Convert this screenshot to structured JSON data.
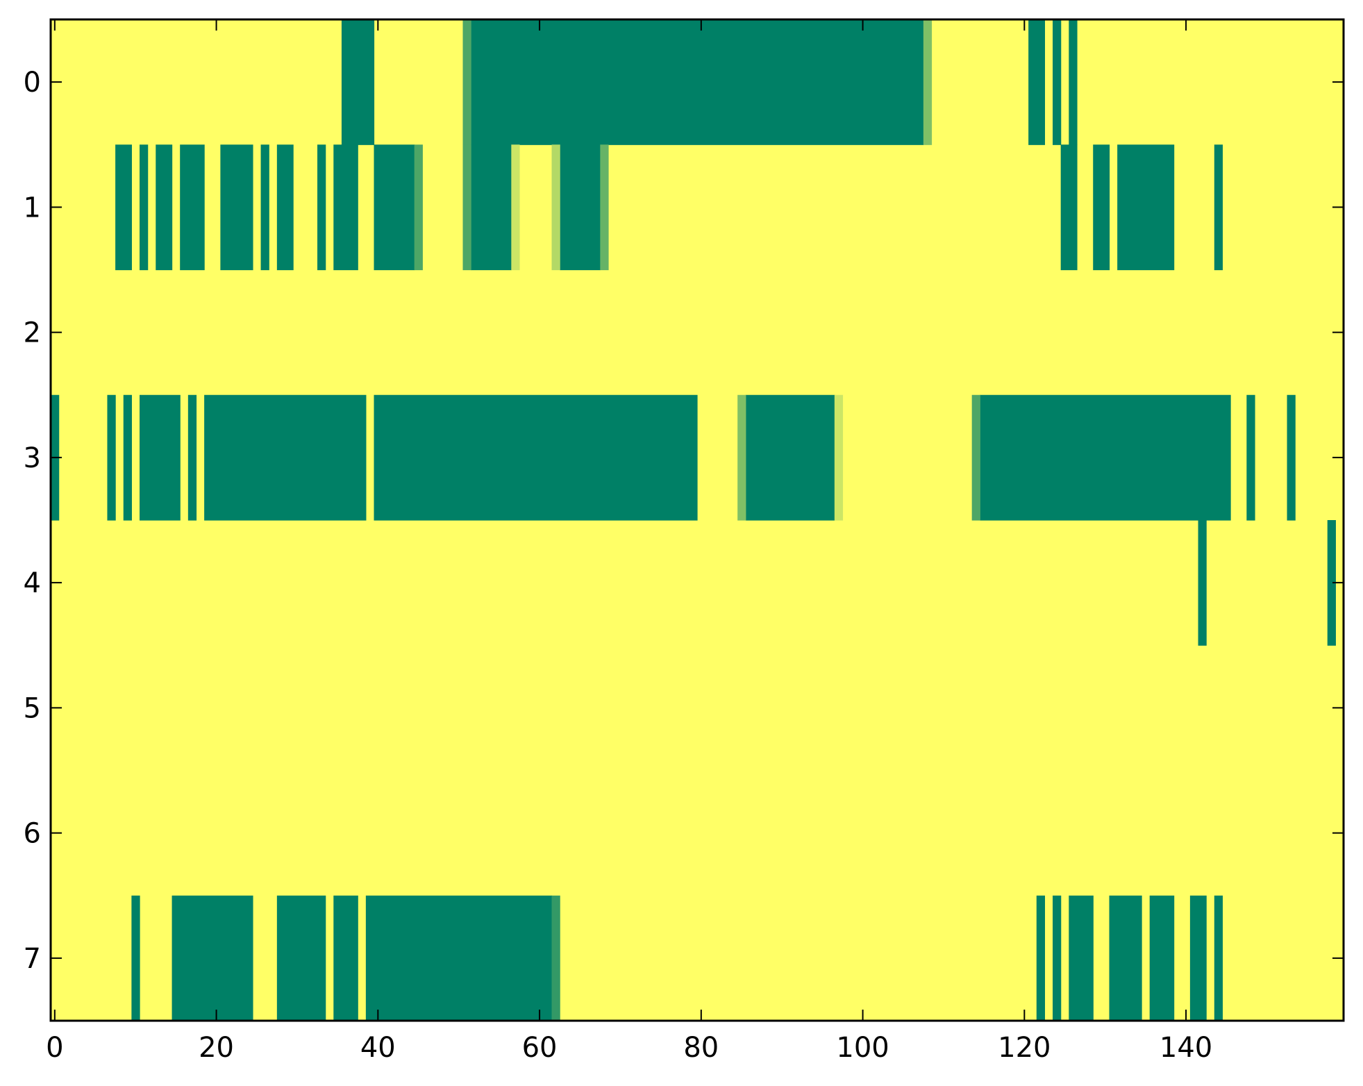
{
  "chart_data": {
    "type": "heatmap",
    "title": "",
    "xlabel": "",
    "ylabel": "",
    "xlim": [
      -0.5,
      159.5
    ],
    "ylim": [
      7.5,
      -0.5
    ],
    "x_ticks": [
      0,
      20,
      40,
      60,
      80,
      100,
      120,
      140
    ],
    "y_ticks": [
      0,
      1,
      2,
      3,
      4,
      5,
      6,
      7
    ],
    "grid": false,
    "legend": "none",
    "colormap": "summer_r",
    "value_range": [
      0,
      1
    ],
    "colors": {
      "low": "#ffff66",
      "high": "#008066",
      "frame": "#000000"
    },
    "rows": [
      {
        "row": 0,
        "high_runs": [
          [
            36,
            39
          ],
          [
            52,
            107
          ],
          [
            121,
            122
          ],
          [
            124
          ],
          [
            126
          ]
        ],
        "mid_cells": [
          [
            51,
            0.7
          ],
          [
            108,
            0.5
          ]
        ]
      },
      {
        "row": 1,
        "high_runs": [
          [
            8,
            9
          ],
          [
            11
          ],
          [
            13,
            14
          ],
          [
            16,
            18
          ],
          [
            21,
            24
          ],
          [
            26
          ],
          [
            28,
            29
          ],
          [
            33
          ],
          [
            35,
            37
          ],
          [
            40,
            44
          ],
          [
            52,
            56
          ],
          [
            63,
            67
          ],
          [
            125,
            126
          ],
          [
            129,
            130
          ],
          [
            132,
            138
          ],
          [
            144
          ]
        ],
        "mid_cells": [
          [
            45,
            0.7
          ],
          [
            51,
            0.7
          ],
          [
            57,
            0.2
          ],
          [
            62,
            0.3
          ],
          [
            68,
            0.6
          ]
        ]
      },
      {
        "row": 2,
        "high_runs": [],
        "mid_cells": []
      },
      {
        "row": 3,
        "high_runs": [
          [
            0
          ],
          [
            7
          ],
          [
            9
          ],
          [
            11,
            15
          ],
          [
            17
          ],
          [
            19,
            38
          ],
          [
            40,
            79
          ],
          [
            86,
            96
          ],
          [
            115,
            145
          ],
          [
            148
          ],
          [
            153
          ]
        ],
        "mid_cells": [
          [
            85,
            0.5
          ],
          [
            97,
            0.2
          ],
          [
            114,
            0.7
          ]
        ]
      },
      {
        "row": 4,
        "high_runs": [
          [
            142
          ],
          [
            158
          ]
        ],
        "mid_cells": []
      },
      {
        "row": 5,
        "high_runs": [],
        "mid_cells": []
      },
      {
        "row": 6,
        "high_runs": [],
        "mid_cells": []
      },
      {
        "row": 7,
        "high_runs": [
          [
            10
          ],
          [
            15,
            24
          ],
          [
            28,
            33
          ],
          [
            35,
            37
          ],
          [
            39,
            61
          ],
          [
            122
          ],
          [
            124
          ],
          [
            126,
            128
          ],
          [
            131,
            134
          ],
          [
            136,
            138
          ],
          [
            141,
            142
          ],
          [
            144
          ]
        ],
        "mid_cells": [
          [
            62,
            0.8
          ]
        ]
      }
    ]
  }
}
